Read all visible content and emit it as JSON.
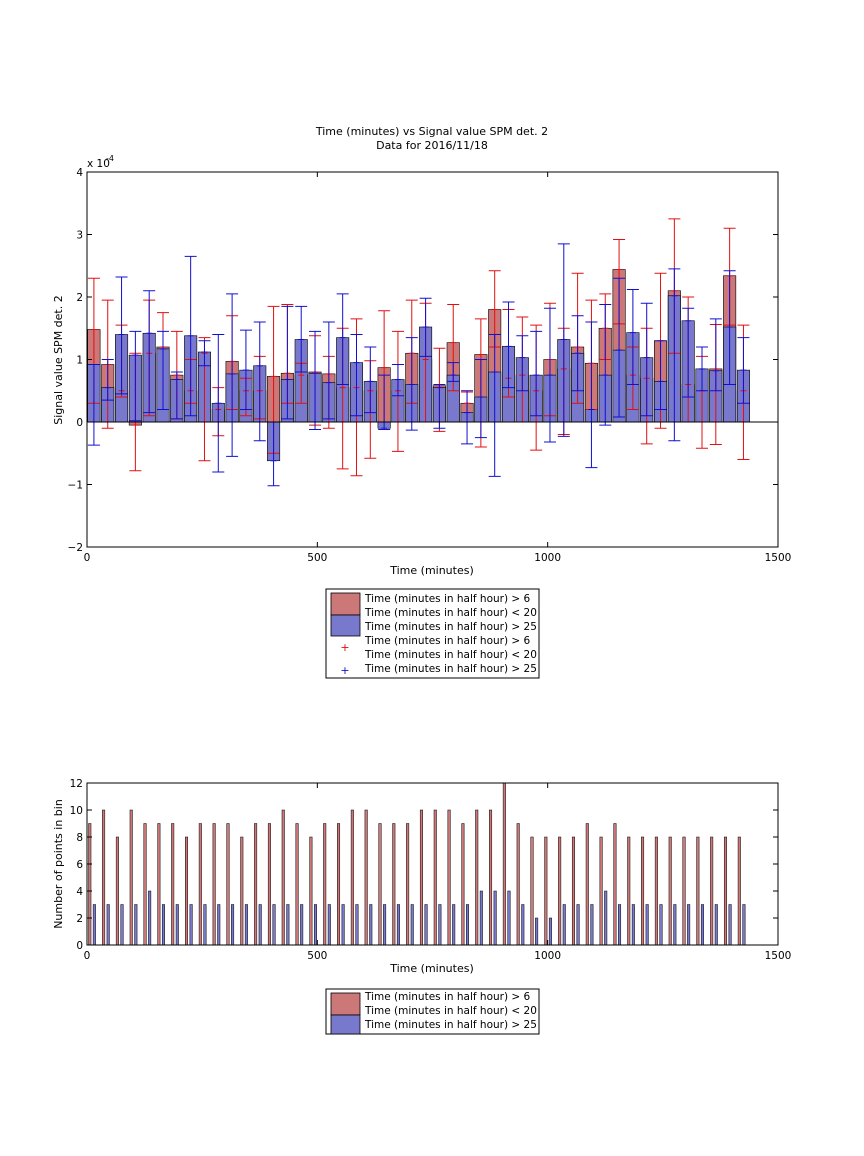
{
  "figure": {
    "background": "#ffffff"
  },
  "colors": {
    "red_bar": "#cd7878",
    "blue_bar": "#7878cd",
    "red_err": "#e01010",
    "blue_err": "#1010d0"
  },
  "chart_data": [
    {
      "type": "bar",
      "title": "Time (minutes) vs Signal value SPM det. 2",
      "subtitle": "Data for 2016/11/18",
      "xlabel": "Time (minutes)",
      "ylabel": "Signal value SPM det. 2",
      "exponent_label": "x 10",
      "exponent_power": "-4",
      "xlim": [
        0,
        1500
      ],
      "ylim": [
        -2,
        4
      ],
      "y_scale_factor": 0.0001,
      "xticks": [
        0,
        500,
        1000,
        1500
      ],
      "yticks": [
        -2,
        -1,
        0,
        1,
        2,
        3,
        4
      ],
      "grid": false,
      "legend_position": "below",
      "legend": [
        "Time (minutes in half hour) > 6",
        "Time (minutes in half hour) < 20",
        "Time (minutes in half hour) > 25",
        "Time (minutes in half hour) > 6",
        "Time (minutes in half hour) < 20",
        "Time (minutes in half hour) > 25"
      ],
      "series": [
        {
          "x": [
            15,
            45,
            75,
            105,
            135,
            165,
            195,
            225,
            255,
            285,
            315,
            345,
            375,
            405,
            435,
            465,
            495,
            525,
            555,
            585,
            615,
            645,
            675,
            705,
            735,
            765,
            795,
            825,
            855,
            885,
            915,
            945,
            975,
            1005,
            1035,
            1065,
            1095,
            1125,
            1155,
            1185,
            1215,
            1245,
            1275,
            1305,
            1335,
            1365,
            1395,
            1425
          ],
          "values": [
            1.48,
            0.92,
            0.5,
            -0.05,
            1.1,
            1.2,
            0.75,
            0.5,
            1.1,
            0.2,
            0.97,
            0.5,
            0.5,
            0.73,
            0.78,
            0.75,
            0.8,
            0.77,
            0.55,
            0.55,
            0.5,
            0.87,
            0.5,
            1.1,
            1.0,
            0.58,
            1.27,
            0.3,
            1.08,
            1.8,
            0.7,
            0.75,
            0.5,
            1.0,
            0.85,
            1.2,
            0.94,
            1.5,
            2.44,
            0.75,
            0.7,
            1.3,
            2.1,
            0.6,
            0.5,
            0.85,
            2.34,
            0.5
          ],
          "err_low": [
            0.3,
            -0.1,
            0.4,
            -0.78,
            0.1,
            0.2,
            0.05,
            0.3,
            -0.62,
            -0.22,
            0.2,
            0.1,
            0.05,
            -0.5,
            0.3,
            0.3,
            -0.05,
            -0.1,
            -0.75,
            -0.86,
            -0.58,
            0.0,
            -0.47,
            0.3,
            0.0,
            -0.15,
            0.5,
            0.0,
            -0.4,
            1.2,
            0.4,
            0.0,
            -0.45,
            0.1,
            -0.2,
            0.3,
            0.2,
            1.0,
            1.57,
            0.2,
            -0.35,
            -0.1,
            1.1,
            0.0,
            -0.42,
            -0.36,
            1.55,
            -0.6
          ],
          "err_high": [
            2.3,
            1.95,
            1.55,
            1.1,
            1.95,
            1.75,
            1.45,
            1.0,
            1.35,
            0.55,
            1.7,
            0.7,
            1.05,
            1.85,
            1.88,
            0.94,
            1.38,
            1.05,
            1.5,
            1.65,
            0.98,
            1.78,
            1.45,
            1.95,
            1.9,
            1.18,
            1.88,
            0.48,
            1.65,
            2.42,
            1.8,
            1.68,
            1.55,
            1.9,
            1.5,
            2.38,
            1.95,
            2.05,
            2.92,
            1.2,
            1.5,
            2.38,
            3.25,
            2.0,
            1.05,
            1.56,
            3.1,
            1.55
          ]
        },
        {
          "x": [
            15,
            45,
            75,
            105,
            135,
            165,
            195,
            225,
            255,
            285,
            315,
            345,
            375,
            405,
            435,
            465,
            495,
            525,
            555,
            585,
            615,
            645,
            675,
            705,
            735,
            765,
            795,
            825,
            855,
            885,
            915,
            945,
            975,
            1005,
            1035,
            1065,
            1095,
            1125,
            1155,
            1185,
            1215,
            1245,
            1275,
            1305,
            1335,
            1365,
            1395,
            1425
          ],
          "values": [
            0.92,
            0.55,
            1.4,
            1.07,
            1.42,
            1.17,
            0.68,
            1.38,
            1.12,
            0.3,
            0.77,
            0.83,
            0.9,
            -0.62,
            0.68,
            1.32,
            0.78,
            0.63,
            1.35,
            0.95,
            0.65,
            -0.1,
            0.68,
            0.6,
            1.52,
            0.55,
            0.75,
            0.15,
            0.4,
            0.8,
            1.21,
            1.03,
            0.75,
            0.75,
            1.32,
            1.1,
            0.2,
            0.75,
            1.15,
            1.43,
            1.03,
            0.65,
            2.02,
            1.62,
            0.85,
            0.82,
            1.52,
            0.83
          ],
          "err_low": [
            -0.37,
            0.35,
            0.45,
            0.02,
            0.15,
            0.2,
            0.05,
            0.1,
            0.9,
            -0.8,
            -0.55,
            0.2,
            -0.3,
            -1.02,
            0.05,
            0.8,
            -0.12,
            0.05,
            0.6,
            0.1,
            0.15,
            -0.12,
            0.42,
            -0.13,
            1.05,
            -0.1,
            0.65,
            -0.35,
            -0.25,
            -0.87,
            0.55,
            0.5,
            0.1,
            -0.32,
            -0.23,
            0.5,
            -0.73,
            -0.05,
            0.08,
            0.6,
            0.1,
            0.2,
            -0.3,
            0.4,
            0.5,
            0.5,
            0.6,
            0.3
          ],
          "err_high": [
            0.92,
            1.0,
            2.32,
            1.45,
            2.1,
            1.45,
            0.8,
            2.65,
            1.3,
            1.4,
            2.05,
            1.47,
            1.6,
            0.0,
            1.85,
            1.85,
            1.45,
            1.6,
            2.05,
            1.4,
            1.2,
            0.75,
            0.92,
            1.35,
            1.98,
            0.6,
            0.95,
            0.5,
            1.0,
            1.4,
            1.92,
            1.38,
            1.45,
            1.82,
            2.85,
            1.7,
            1.6,
            1.88,
            2.3,
            2.12,
            1.9,
            1.3,
            2.45,
            1.82,
            1.2,
            1.65,
            2.42,
            1.35
          ]
        }
      ]
    },
    {
      "type": "bar",
      "xlabel": "Time (minutes)",
      "ylabel": "Number of points in bin",
      "xlim": [
        0,
        1500
      ],
      "ylim": [
        0,
        12
      ],
      "xticks": [
        0,
        500,
        1000,
        1500
      ],
      "yticks": [
        0,
        2,
        4,
        6,
        8,
        10,
        12
      ],
      "grid": false,
      "legend_position": "below",
      "legend": [
        "Time (minutes in half hour) > 6",
        "Time (minutes in half hour) < 20",
        "Time (minutes in half hour) > 25"
      ],
      "series": [
        {
          "x": [
            6,
            36,
            66,
            96,
            126,
            156,
            186,
            216,
            246,
            276,
            306,
            336,
            366,
            396,
            426,
            456,
            486,
            516,
            546,
            576,
            606,
            636,
            666,
            696,
            726,
            756,
            786,
            816,
            846,
            876,
            906,
            936,
            966,
            996,
            1026,
            1056,
            1086,
            1116,
            1146,
            1176,
            1206,
            1236,
            1266,
            1296,
            1326,
            1356,
            1386,
            1416
          ],
          "values": [
            9,
            10,
            8,
            10,
            9,
            9,
            9,
            8,
            9,
            9,
            9,
            8,
            9,
            9,
            10,
            9,
            8,
            9,
            9,
            10,
            10,
            9,
            9,
            9,
            10,
            10,
            10,
            9,
            10,
            10,
            12,
            9,
            8,
            8,
            8,
            8,
            9,
            8,
            9,
            8,
            8,
            8,
            8,
            8,
            8,
            8,
            8,
            8
          ]
        },
        {
          "x": [
            16,
            46,
            76,
            106,
            136,
            166,
            196,
            226,
            256,
            286,
            316,
            346,
            376,
            406,
            436,
            466,
            496,
            526,
            556,
            586,
            616,
            646,
            676,
            706,
            736,
            766,
            796,
            826,
            856,
            886,
            916,
            946,
            976,
            1006,
            1036,
            1066,
            1096,
            1126,
            1156,
            1186,
            1216,
            1246,
            1276,
            1306,
            1336,
            1366,
            1396,
            1426
          ],
          "values": [
            3,
            3,
            3,
            3,
            4,
            3,
            3,
            3,
            3,
            3,
            3,
            3,
            3,
            3,
            3,
            3,
            3,
            3,
            3,
            3,
            3,
            3,
            3,
            3,
            3,
            3,
            3,
            3,
            4,
            4,
            4,
            3,
            2,
            2,
            3,
            3,
            3,
            4,
            3,
            3,
            3,
            3,
            3,
            3,
            3,
            3,
            3,
            3
          ]
        }
      ]
    }
  ]
}
